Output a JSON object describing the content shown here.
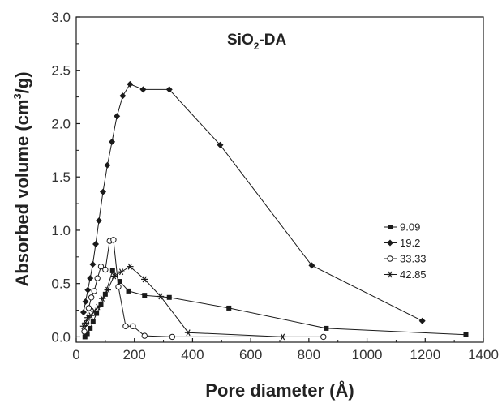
{
  "chart_data": {
    "type": "line",
    "title_parts": [
      "SiO",
      "2",
      "-DA"
    ],
    "xlabel": "Pore diameter (Å)",
    "ylabel_parts": [
      "Absorbed volume (cm",
      "3",
      "/g)"
    ],
    "xlim": [
      0,
      1400
    ],
    "ylim": [
      -0.05,
      3.0
    ],
    "xticks": [
      0,
      200,
      400,
      600,
      800,
      1000,
      1200,
      1400
    ],
    "xtick_labels": [
      "0",
      "200",
      "400",
      "600",
      "800",
      "1000",
      "1200",
      "1400"
    ],
    "yticks": [
      0.0,
      0.5,
      1.0,
      1.5,
      2.0,
      2.5,
      3.0
    ],
    "ytick_labels": [
      "0.0",
      "0.5",
      "1.0",
      "1.5",
      "2.0",
      "2.5",
      "3.0"
    ],
    "grid": false,
    "legend_position": "right",
    "line_color": "#1a1a1a",
    "series": [
      {
        "name": "9.09",
        "marker": "square",
        "x": [
          30,
          38,
          48,
          58,
          70,
          85,
          100,
          125,
          150,
          180,
          235,
          320,
          525,
          860,
          1340
        ],
        "y": [
          0.0,
          0.03,
          0.08,
          0.14,
          0.22,
          0.3,
          0.4,
          0.62,
          0.52,
          0.43,
          0.39,
          0.37,
          0.27,
          0.08,
          0.02
        ]
      },
      {
        "name": "19.2",
        "marker": "diamond",
        "x": [
          25,
          32,
          40,
          48,
          57,
          67,
          78,
          92,
          107,
          123,
          140,
          160,
          185,
          230,
          320,
          495,
          810,
          1190
        ],
        "y": [
          0.23,
          0.33,
          0.44,
          0.55,
          0.68,
          0.87,
          1.09,
          1.36,
          1.61,
          1.83,
          2.07,
          2.26,
          2.37,
          2.32,
          2.32,
          1.8,
          0.67,
          0.15
        ]
      },
      {
        "name": "33.33",
        "marker": "circle",
        "x": [
          28,
          35,
          43,
          52,
          62,
          73,
          85,
          100,
          115,
          128,
          145,
          170,
          195,
          235,
          330,
          850
        ],
        "y": [
          0.05,
          0.13,
          0.27,
          0.37,
          0.43,
          0.55,
          0.66,
          0.63,
          0.9,
          0.91,
          0.47,
          0.1,
          0.1,
          0.01,
          0.0,
          0.0
        ]
      },
      {
        "name": "42.85",
        "marker": "star",
        "x": [
          25,
          32,
          40,
          50,
          62,
          75,
          90,
          108,
          130,
          155,
          185,
          235,
          290,
          385,
          710
        ],
        "y": [
          0.1,
          0.13,
          0.18,
          0.2,
          0.24,
          0.28,
          0.36,
          0.44,
          0.57,
          0.61,
          0.66,
          0.54,
          0.38,
          0.04,
          0.0
        ]
      }
    ]
  }
}
